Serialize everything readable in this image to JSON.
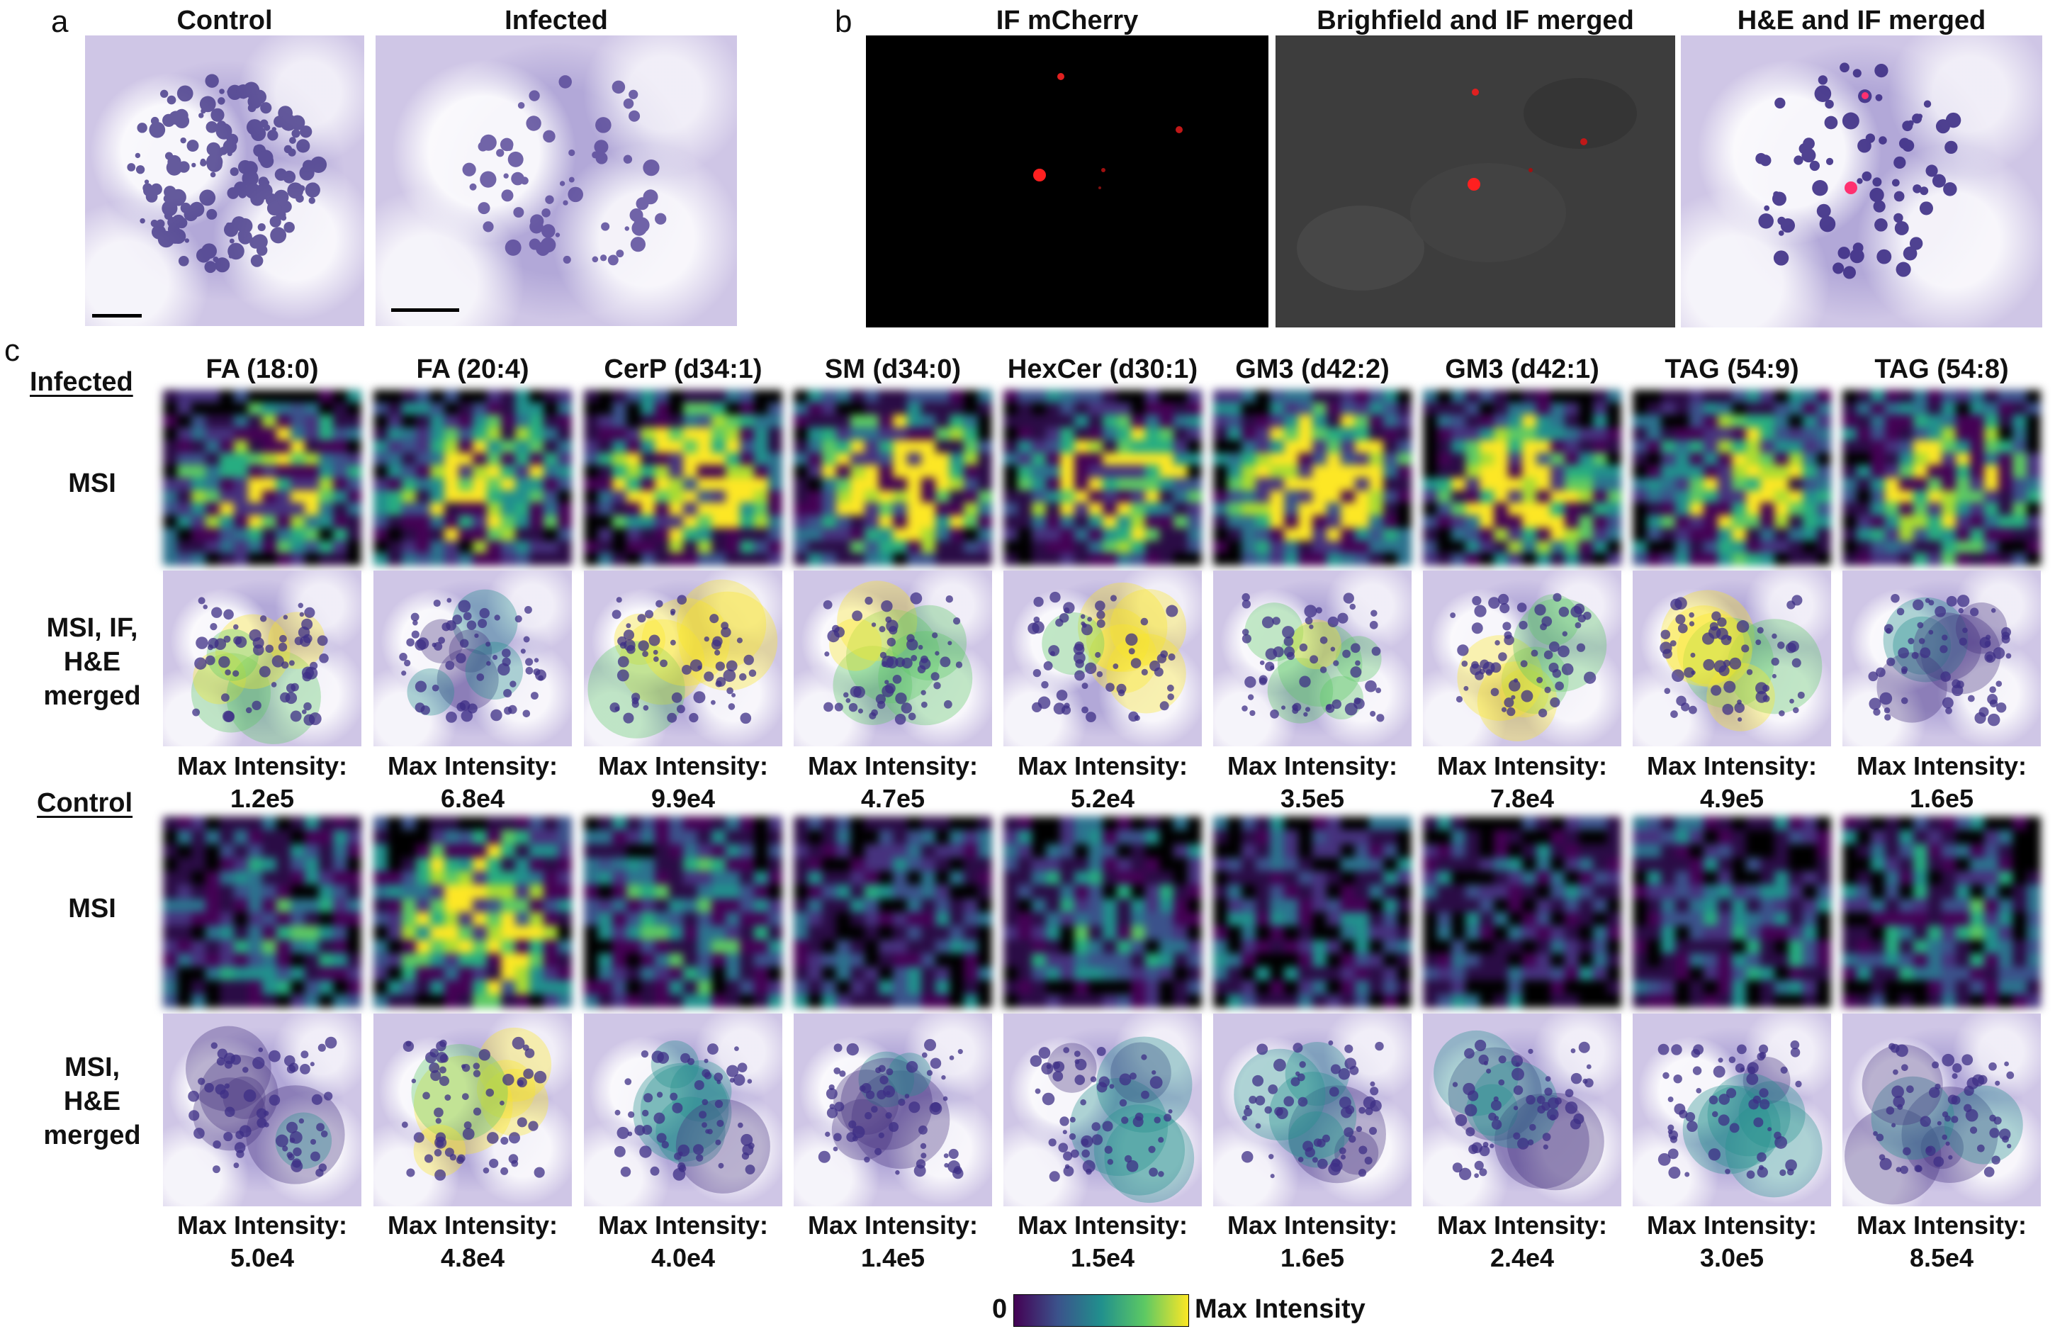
{
  "panel_a": {
    "letter": "a",
    "titles": [
      "Control",
      "Infected"
    ]
  },
  "panel_b": {
    "letter": "b",
    "titles": [
      "IF mCherry",
      "Brighfield and IF merged",
      "H&E and IF merged"
    ]
  },
  "panel_c": {
    "letter": "c",
    "columns": [
      "FA (18:0)",
      "FA (20:4)",
      "CerP (d34:1)",
      "SM (d34:0)",
      "HexCer (d30:1)",
      "GM3 (d42:2)",
      "GM3 (d42:1)",
      "TAG (54:9)",
      "TAG (54:8)"
    ],
    "infected": {
      "group_label": "Infected",
      "row1_label": "MSI",
      "row2_label": [
        "MSI, IF,",
        "H&E",
        "merged"
      ],
      "max_label": "Max Intensity:",
      "max_values": [
        "1.2e5",
        "6.8e4",
        "9.9e4",
        "4.7e5",
        "5.2e4",
        "3.5e5",
        "7.8e4",
        "4.9e5",
        "1.6e5"
      ]
    },
    "control": {
      "group_label": "Control",
      "row1_label": "MSI",
      "row2_label": [
        "MSI,",
        "H&E",
        "merged"
      ],
      "max_label": "Max Intensity:",
      "max_values": [
        "5.0e4",
        "4.8e4",
        "4.0e4",
        "1.4e5",
        "1.5e4",
        "1.6e5",
        "2.4e4",
        "3.0e5",
        "8.5e4"
      ]
    }
  },
  "colorbar": {
    "min_label": "0",
    "max_label": "Max Intensity",
    "colors": [
      "#440154",
      "#3b528b",
      "#21908d",
      "#5dc963",
      "#fde725"
    ]
  }
}
